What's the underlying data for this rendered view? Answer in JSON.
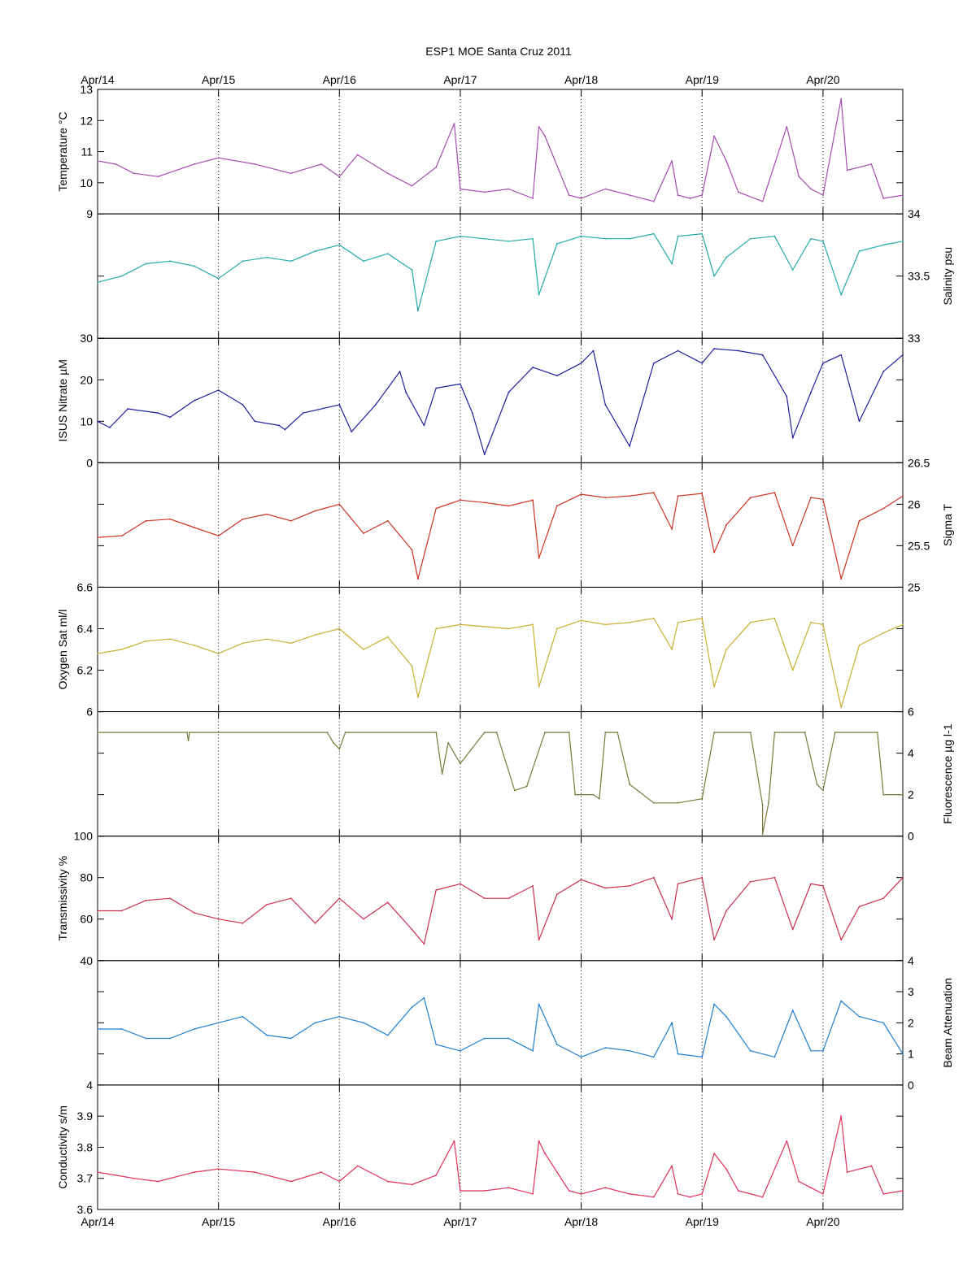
{
  "title": "ESP1 MOE Santa Cruz   2011",
  "x_axis": {
    "ticks": [
      "Apr/14",
      "Apr/15",
      "Apr/16",
      "Apr/17",
      "Apr/18",
      "Apr/19",
      "Apr/20"
    ],
    "range_days": [
      0,
      6.66
    ],
    "grid": "dotted vertical at day boundaries"
  },
  "chart_data": [
    {
      "type": "line",
      "name": "temperature",
      "ylabel": "Temperature °C",
      "ylabel_side": "left",
      "ylim": [
        9,
        13
      ],
      "ticks": [
        9,
        10,
        11,
        12,
        13
      ],
      "tick_labels": [
        "9",
        "10",
        "11",
        "12",
        "13"
      ],
      "tick_side": "left",
      "color": "#a54bb0",
      "x_days": [
        0,
        0.15,
        0.3,
        0.5,
        0.8,
        1.0,
        1.3,
        1.6,
        1.85,
        2.0,
        2.15,
        2.4,
        2.6,
        2.8,
        2.95,
        3.0,
        3.2,
        3.4,
        3.6,
        3.65,
        3.7,
        3.9,
        4.0,
        4.2,
        4.4,
        4.6,
        4.75,
        4.8,
        4.9,
        5.0,
        5.1,
        5.2,
        5.3,
        5.5,
        5.7,
        5.8,
        5.9,
        6.0,
        6.15,
        6.2,
        6.4,
        6.5,
        6.66
      ],
      "values": [
        10.7,
        10.6,
        10.3,
        10.2,
        10.6,
        10.8,
        10.6,
        10.3,
        10.6,
        10.2,
        10.9,
        10.3,
        9.9,
        10.5,
        11.9,
        9.8,
        9.7,
        9.8,
        9.5,
        11.8,
        11.5,
        9.6,
        9.5,
        9.8,
        9.6,
        9.4,
        10.7,
        9.6,
        9.5,
        9.6,
        11.5,
        10.7,
        9.7,
        9.4,
        11.8,
        10.2,
        9.8,
        9.6,
        12.7,
        10.4,
        10.6,
        9.5,
        9.6
      ]
    },
    {
      "type": "line",
      "name": "salinity",
      "ylabel": "Salinity psu",
      "ylabel_side": "right",
      "ylim": [
        33,
        34
      ],
      "ticks": [
        33,
        33.5,
        34
      ],
      "tick_labels": [
        "33",
        "33.5",
        "34"
      ],
      "tick_side": "right",
      "color": "#22aaa8",
      "x_days": [
        0,
        0.2,
        0.4,
        0.6,
        0.8,
        1.0,
        1.2,
        1.4,
        1.6,
        1.8,
        2.0,
        2.2,
        2.4,
        2.6,
        2.65,
        2.8,
        3.0,
        3.2,
        3.4,
        3.6,
        3.65,
        3.8,
        4.0,
        4.2,
        4.4,
        4.6,
        4.75,
        4.8,
        5.0,
        5.1,
        5.2,
        5.4,
        5.6,
        5.75,
        5.9,
        6.0,
        6.15,
        6.3,
        6.5,
        6.66
      ],
      "values": [
        33.45,
        33.5,
        33.6,
        33.62,
        33.58,
        33.48,
        33.62,
        33.65,
        33.62,
        33.7,
        33.75,
        33.62,
        33.68,
        33.55,
        33.22,
        33.78,
        33.82,
        33.8,
        33.78,
        33.8,
        33.35,
        33.76,
        33.82,
        33.8,
        33.8,
        33.84,
        33.6,
        33.82,
        33.84,
        33.5,
        33.65,
        33.8,
        33.82,
        33.55,
        33.8,
        33.78,
        33.35,
        33.7,
        33.75,
        33.78
      ]
    },
    {
      "type": "line",
      "name": "nitrate",
      "ylabel": "ISUS Nitrate µM",
      "ylabel_side": "left",
      "ylim": [
        0,
        30
      ],
      "ticks": [
        0,
        10,
        20,
        30
      ],
      "tick_labels": [
        "0",
        "10",
        "20",
        "30"
      ],
      "tick_side": "left",
      "color": "#1f1fa0",
      "x_days": [
        0,
        0.1,
        0.25,
        0.5,
        0.6,
        0.8,
        1.0,
        1.2,
        1.3,
        1.5,
        1.55,
        1.7,
        2.0,
        2.1,
        2.3,
        2.5,
        2.55,
        2.7,
        2.8,
        3.0,
        3.1,
        3.2,
        3.4,
        3.6,
        3.8,
        4.0,
        4.1,
        4.2,
        4.4,
        4.6,
        4.8,
        5.0,
        5.1,
        5.3,
        5.5,
        5.7,
        5.75,
        5.9,
        6.0,
        6.15,
        6.3,
        6.5,
        6.66
      ],
      "values": [
        10,
        8.5,
        13,
        12,
        11,
        15,
        17.5,
        14,
        10,
        9,
        8,
        12,
        14,
        7.5,
        14,
        22,
        17,
        9,
        18,
        19,
        12,
        2,
        17,
        23,
        21,
        24,
        27,
        14,
        4,
        24,
        27,
        24,
        27.5,
        27,
        26,
        16,
        6,
        17,
        24,
        26,
        10,
        22,
        26
      ]
    },
    {
      "type": "line",
      "name": "sigma_t",
      "ylabel": "Sigma T",
      "ylabel_side": "right",
      "ylim": [
        25,
        26.5
      ],
      "ticks": [
        25,
        25.5,
        26,
        26.5
      ],
      "tick_labels": [
        "25",
        "25.5",
        "26",
        "26.5"
      ],
      "tick_side": "right",
      "color": "#cc3322",
      "x_days": [
        0,
        0.2,
        0.4,
        0.6,
        0.8,
        1.0,
        1.2,
        1.4,
        1.6,
        1.8,
        2.0,
        2.2,
        2.4,
        2.6,
        2.65,
        2.8,
        3.0,
        3.2,
        3.4,
        3.6,
        3.65,
        3.8,
        4.0,
        4.2,
        4.4,
        4.6,
        4.75,
        4.8,
        5.0,
        5.1,
        5.2,
        5.4,
        5.6,
        5.75,
        5.9,
        6.0,
        6.15,
        6.3,
        6.5,
        6.66
      ],
      "values": [
        25.6,
        25.62,
        25.8,
        25.82,
        25.72,
        25.62,
        25.82,
        25.88,
        25.8,
        25.92,
        26.0,
        25.65,
        25.8,
        25.45,
        25.1,
        25.95,
        26.05,
        26.02,
        25.98,
        26.05,
        25.35,
        25.98,
        26.12,
        26.08,
        26.1,
        26.14,
        25.7,
        26.1,
        26.13,
        25.42,
        25.75,
        26.08,
        26.14,
        25.5,
        26.08,
        26.06,
        25.1,
        25.8,
        25.95,
        26.1
      ]
    },
    {
      "type": "line",
      "name": "oxygen_sat",
      "ylabel": "Oxygen Sat ml/l",
      "ylabel_side": "left",
      "ylim": [
        6,
        6.6
      ],
      "ticks": [
        6,
        6.2,
        6.4,
        6.6
      ],
      "tick_labels": [
        "6",
        "6.2",
        "6.4",
        "6.6"
      ],
      "tick_side": "left",
      "color": "#c8b030",
      "x_days": [
        0,
        0.2,
        0.4,
        0.6,
        0.8,
        1.0,
        1.2,
        1.4,
        1.6,
        1.8,
        2.0,
        2.2,
        2.4,
        2.6,
        2.65,
        2.8,
        3.0,
        3.2,
        3.4,
        3.6,
        3.65,
        3.8,
        4.0,
        4.2,
        4.4,
        4.6,
        4.75,
        4.8,
        5.0,
        5.1,
        5.2,
        5.4,
        5.6,
        5.75,
        5.9,
        6.0,
        6.15,
        6.3,
        6.5,
        6.66
      ],
      "values": [
        6.28,
        6.3,
        6.34,
        6.35,
        6.32,
        6.28,
        6.33,
        6.35,
        6.33,
        6.37,
        6.4,
        6.3,
        6.36,
        6.22,
        6.07,
        6.4,
        6.42,
        6.41,
        6.4,
        6.42,
        6.12,
        6.4,
        6.44,
        6.42,
        6.43,
        6.45,
        6.3,
        6.43,
        6.45,
        6.12,
        6.3,
        6.43,
        6.45,
        6.2,
        6.43,
        6.42,
        6.02,
        6.32,
        6.38,
        6.42
      ]
    },
    {
      "type": "line",
      "name": "fluorescence",
      "ylabel": "Fluorescence µg l-1",
      "ylabel_side": "right",
      "ylim": [
        0,
        6
      ],
      "ticks": [
        0,
        2,
        4,
        6
      ],
      "tick_labels": [
        "0",
        "2",
        "4",
        "6"
      ],
      "tick_side": "right",
      "color": "#7a7a3a",
      "x_days": [
        0,
        0.74,
        0.75,
        0.76,
        1.9,
        1.95,
        2.0,
        2.05,
        2.8,
        2.85,
        2.9,
        3.0,
        3.2,
        3.3,
        3.45,
        3.55,
        3.7,
        3.9,
        3.95,
        4.1,
        4.15,
        4.2,
        4.3,
        4.4,
        4.6,
        4.8,
        5.0,
        5.1,
        5.4,
        5.5,
        5.5,
        5.55,
        5.6,
        5.85,
        5.95,
        6.0,
        6.1,
        6.45,
        6.5,
        6.66
      ],
      "values": [
        5,
        5,
        4.6,
        5,
        5,
        4.5,
        4.2,
        5,
        5,
        3,
        4.5,
        3.5,
        5,
        5,
        2.2,
        2.4,
        5,
        5,
        2,
        2,
        1.8,
        5,
        5,
        2.5,
        1.6,
        1.6,
        1.8,
        5,
        5,
        1.5,
        0.1,
        1.6,
        5,
        5,
        2.5,
        2.2,
        5,
        5,
        2,
        2
      ]
    },
    {
      "type": "line",
      "name": "transmissivity",
      "ylabel": "Transmissivity %",
      "ylabel_side": "left",
      "ylim": [
        40,
        100
      ],
      "ticks": [
        40,
        60,
        80,
        100
      ],
      "tick_labels": [
        "40",
        "60",
        "80",
        "100"
      ],
      "tick_side": "left",
      "color": "#cc3050",
      "x_days": [
        0,
        0.2,
        0.4,
        0.6,
        0.8,
        1.0,
        1.2,
        1.4,
        1.6,
        1.8,
        2.0,
        2.2,
        2.4,
        2.6,
        2.7,
        2.8,
        3.0,
        3.2,
        3.4,
        3.6,
        3.65,
        3.8,
        4.0,
        4.2,
        4.4,
        4.6,
        4.75,
        4.8,
        5.0,
        5.1,
        5.2,
        5.4,
        5.6,
        5.75,
        5.9,
        6.0,
        6.15,
        6.3,
        6.5,
        6.66
      ],
      "values": [
        64,
        64,
        69,
        70,
        63,
        60,
        58,
        67,
        70,
        58,
        70,
        60,
        68,
        55,
        48,
        74,
        77,
        70,
        70,
        76,
        50,
        72,
        79,
        75,
        76,
        80,
        60,
        77,
        80,
        50,
        64,
        78,
        80,
        55,
        77,
        76,
        50,
        66,
        70,
        80
      ]
    },
    {
      "type": "line",
      "name": "beam_attenuation",
      "ylabel": "Beam Attenuation",
      "ylabel_side": "right",
      "ylim": [
        0,
        4
      ],
      "ticks": [
        0,
        1,
        2,
        3,
        4
      ],
      "tick_labels": [
        "0",
        "1",
        "2",
        "3",
        "4"
      ],
      "tick_side": "right",
      "color": "#1f7fd0",
      "x_days": [
        0,
        0.2,
        0.4,
        0.6,
        0.8,
        1.0,
        1.2,
        1.4,
        1.6,
        1.8,
        2.0,
        2.2,
        2.4,
        2.6,
        2.7,
        2.8,
        3.0,
        3.2,
        3.4,
        3.6,
        3.65,
        3.8,
        4.0,
        4.2,
        4.4,
        4.6,
        4.75,
        4.8,
        5.0,
        5.1,
        5.2,
        5.4,
        5.6,
        5.75,
        5.9,
        6.0,
        6.15,
        6.3,
        6.5,
        6.66
      ],
      "values": [
        1.8,
        1.8,
        1.5,
        1.5,
        1.8,
        2.0,
        2.2,
        1.6,
        1.5,
        2.0,
        2.2,
        2.0,
        1.6,
        2.5,
        2.8,
        1.3,
        1.1,
        1.5,
        1.5,
        1.1,
        2.6,
        1.3,
        0.9,
        1.2,
        1.1,
        0.9,
        2.0,
        1.0,
        0.9,
        2.6,
        2.2,
        1.1,
        0.9,
        2.4,
        1.1,
        1.1,
        2.7,
        2.2,
        2.0,
        1.0
      ]
    },
    {
      "type": "line",
      "name": "conductivity",
      "ylabel": "Conductivity s/m",
      "ylabel_side": "left",
      "ylim": [
        3.6,
        4
      ],
      "ticks": [
        3.6,
        3.7,
        3.8,
        3.9,
        4
      ],
      "tick_labels": [
        "3.6",
        "3.7",
        "3.8",
        "3.9",
        "4"
      ],
      "tick_side": "left",
      "color": "#e0305a",
      "x_days": [
        0,
        0.15,
        0.3,
        0.5,
        0.8,
        1.0,
        1.3,
        1.6,
        1.85,
        2.0,
        2.15,
        2.4,
        2.6,
        2.8,
        2.95,
        3.0,
        3.2,
        3.4,
        3.6,
        3.65,
        3.7,
        3.9,
        4.0,
        4.2,
        4.4,
        4.6,
        4.75,
        4.8,
        4.9,
        5.0,
        5.1,
        5.2,
        5.3,
        5.5,
        5.7,
        5.8,
        5.9,
        6.0,
        6.15,
        6.2,
        6.4,
        6.5,
        6.66
      ],
      "values": [
        3.72,
        3.71,
        3.7,
        3.69,
        3.72,
        3.73,
        3.72,
        3.69,
        3.72,
        3.69,
        3.74,
        3.69,
        3.68,
        3.71,
        3.82,
        3.66,
        3.66,
        3.67,
        3.65,
        3.82,
        3.78,
        3.66,
        3.65,
        3.67,
        3.65,
        3.64,
        3.74,
        3.65,
        3.64,
        3.65,
        3.78,
        3.73,
        3.66,
        3.64,
        3.82,
        3.69,
        3.67,
        3.65,
        3.9,
        3.72,
        3.74,
        3.65,
        3.66
      ]
    }
  ]
}
